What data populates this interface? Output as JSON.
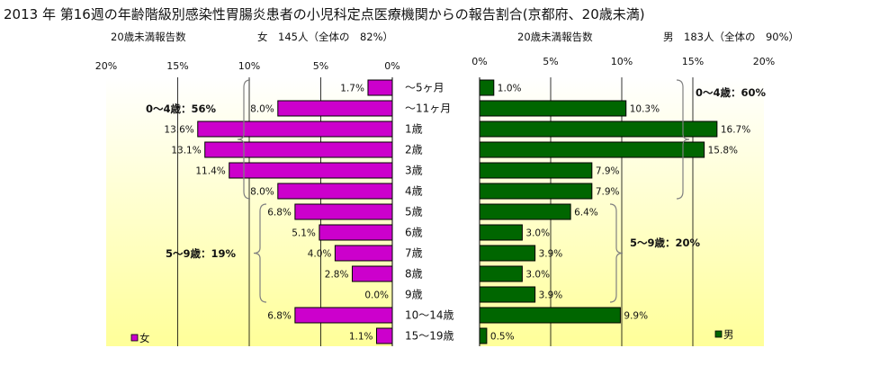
{
  "title": "2013 年 第16週の年齢階級別感染性胃腸炎患者の小児科定点医療機関からの報告割合(京都府、20歳未満)",
  "colors": {
    "female": "#cc00cc",
    "male": "#006600",
    "bg_top": "#ffffff",
    "bg_bottom": "#ffff99",
    "brace": "#808080"
  },
  "chart_data": {
    "type": "bar",
    "title": "2013 年 第16週の年齢階級別感染性胃腸炎患者の小児科定点医療機関からの報告割合(京都府、20歳未満)",
    "categories": [
      "～5ヶ月",
      "～11ヶ月",
      "1歳",
      "2歳",
      "3歳",
      "4歳",
      "5歳",
      "6歳",
      "7歳",
      "8歳",
      "9歳",
      "10～14歳",
      "15～19歳"
    ],
    "series": [
      {
        "name": "女",
        "values": [
          1.7,
          8.0,
          13.6,
          13.1,
          11.4,
          8.0,
          6.8,
          5.1,
          4.0,
          2.8,
          0.0,
          6.8,
          1.1
        ]
      },
      {
        "name": "男",
        "values": [
          1.0,
          10.3,
          16.7,
          15.8,
          7.9,
          7.9,
          6.4,
          3.0,
          3.9,
          3.0,
          3.9,
          9.9,
          0.5
        ]
      }
    ],
    "female_panel": {
      "header_left": "20歳未満報告数",
      "header_right": "女　145人（全体の　82%）",
      "ticks": [
        "20%",
        "15%",
        "10%",
        "5%",
        "0%"
      ],
      "xlim": [
        0,
        20
      ],
      "value_labels": [
        "1.7%",
        "8.0%",
        "13.6%",
        "13.1%",
        "11.4%",
        "8.0%",
        "6.8%",
        "5.1%",
        "4.0%",
        "2.8%",
        "0.0%",
        "6.8%",
        "1.1%"
      ],
      "groups": [
        {
          "label": "0～4歳：56%",
          "from": 0,
          "to": 5
        },
        {
          "label": "5～9歳：19%",
          "from": 6,
          "to": 10
        }
      ],
      "legend": "女"
    },
    "male_panel": {
      "header_left": "20歳未満報告数",
      "header_right": "男　183人（全体の　90%）",
      "ticks": [
        "0%",
        "5%",
        "10%",
        "15%",
        "20%"
      ],
      "xlim": [
        0,
        20
      ],
      "value_labels": [
        "1.0%",
        "10.3%",
        "16.7%",
        "15.8%",
        "7.9%",
        "7.9%",
        "6.4%",
        "3.0%",
        "3.9%",
        "3.0%",
        "3.9%",
        "9.9%",
        "0.5%"
      ],
      "groups": [
        {
          "label": "0～4歳：60%",
          "from": 0,
          "to": 5
        },
        {
          "label": "5～9歳：20%",
          "from": 6,
          "to": 10
        }
      ],
      "legend": "男"
    },
    "grid": true
  }
}
